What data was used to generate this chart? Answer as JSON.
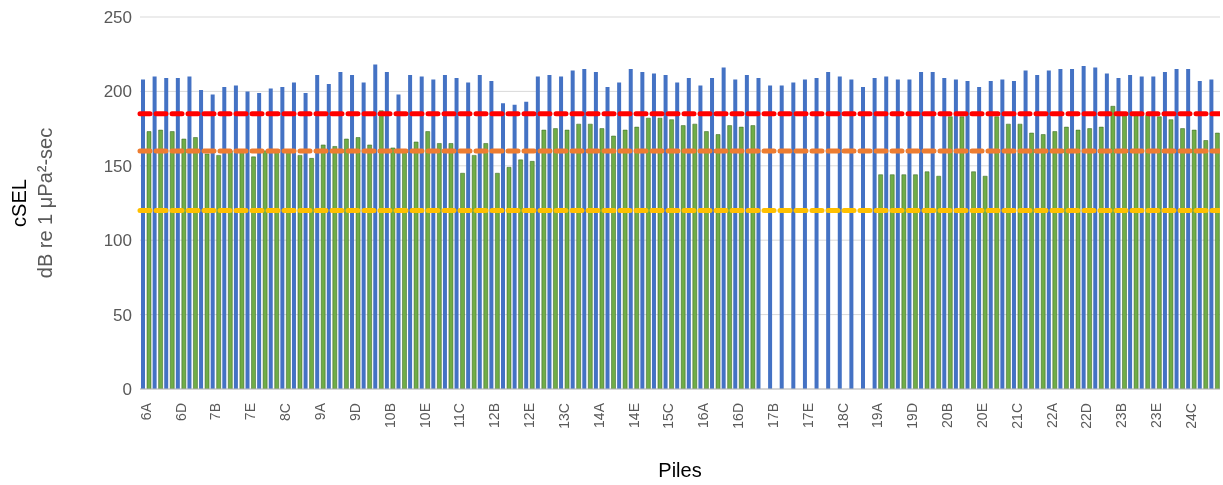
{
  "chart_data": {
    "type": "bar",
    "xlabel": "Piles",
    "ylabel": "cSEL\ndB re 1 μPa²-sec",
    "categories": [
      "6A",
      null,
      null,
      "6D",
      null,
      null,
      "7B",
      null,
      null,
      "7E",
      null,
      null,
      "8C",
      null,
      null,
      "9A",
      null,
      null,
      "9D",
      null,
      null,
      "10B",
      null,
      null,
      "10E",
      null,
      null,
      "11C",
      null,
      null,
      "12B",
      null,
      null,
      "12E",
      null,
      null,
      "13C",
      null,
      null,
      "14A",
      null,
      null,
      "14E",
      null,
      null,
      "15C",
      null,
      null,
      "16A",
      null,
      null,
      "16D",
      null,
      null,
      "17B",
      null,
      null,
      "17E",
      null,
      null,
      "18C",
      null,
      null,
      "19A",
      null,
      null,
      "19D",
      null,
      null,
      "20B",
      null,
      null,
      "20E",
      null,
      null,
      "21C",
      null,
      null,
      "22A",
      null,
      null,
      "22D",
      null,
      null,
      "23B",
      null,
      null,
      "23E",
      null,
      null,
      "24C",
      null,
      null
    ],
    "series": [
      {
        "color": "#4472c4",
        "values": [
          208,
          210,
          209,
          209,
          210,
          201,
          198,
          203,
          204,
          200,
          199,
          202,
          203,
          206,
          199,
          211,
          205,
          213,
          211,
          206,
          218,
          213,
          198,
          211,
          210,
          208,
          211,
          209,
          206,
          211,
          207,
          192,
          191,
          193,
          210,
          211,
          210,
          214,
          215,
          213,
          203,
          206,
          215,
          213,
          212,
          211,
          206,
          209,
          204,
          209,
          216,
          208,
          211,
          209,
          204,
          204,
          206,
          208,
          209,
          213,
          210,
          208,
          203,
          209,
          210,
          208,
          208,
          213,
          213,
          209,
          208,
          207,
          203,
          207,
          208,
          207,
          214,
          211,
          214,
          215,
          215,
          217,
          216,
          212,
          209,
          211,
          210,
          210,
          213,
          215,
          215,
          207,
          208
        ]
      },
      {
        "color": "#70ad47",
        "values": [
          173,
          174,
          173,
          168,
          169,
          158,
          157,
          160,
          160,
          156,
          160,
          160,
          160,
          157,
          155,
          164,
          163,
          168,
          169,
          164,
          187,
          162,
          159,
          166,
          173,
          165,
          165,
          145,
          157,
          165,
          145,
          149,
          154,
          153,
          174,
          175,
          174,
          178,
          178,
          175,
          170,
          174,
          176,
          182,
          182,
          181,
          177,
          178,
          173,
          171,
          177,
          176,
          177,
          null,
          null,
          null,
          null,
          null,
          null,
          null,
          null,
          null,
          null,
          144,
          144,
          144,
          144,
          146,
          143,
          183,
          183,
          146,
          143,
          183,
          178,
          178,
          172,
          171,
          173,
          176,
          174,
          175,
          176,
          190,
          184,
          184,
          184,
          183,
          181,
          175,
          174,
          167,
          172
        ]
      }
    ],
    "ylim": [
      0,
      250
    ],
    "yticks": [
      0,
      50,
      100,
      150,
      200,
      250
    ],
    "grid": "y",
    "ref_lines": [
      {
        "axis": "y",
        "value": 185,
        "color": "#ff0000",
        "line_style": "dashed"
      },
      {
        "axis": "y",
        "value": 160,
        "color": "#ed7d31",
        "line_style": "dashed"
      },
      {
        "axis": "y",
        "value": 120,
        "color": "#ffc000",
        "line_style": "dashed"
      }
    ]
  }
}
